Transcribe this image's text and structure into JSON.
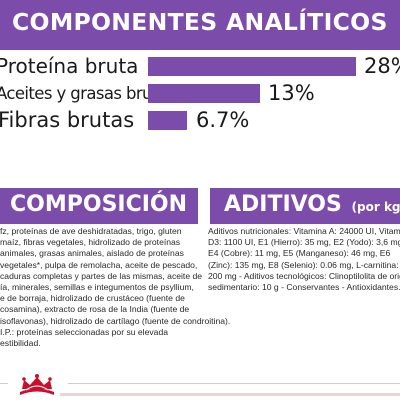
{
  "analysis": {
    "title": "COMPONENTES ANALÍTICOS",
    "rows": [
      {
        "label": "Proteína bruta",
        "value": "28%",
        "percent": 28
      },
      {
        "label": "Aceites y grasas brutos",
        "value": "13%",
        "percent": 13
      },
      {
        "label": "Fibras brutas",
        "value": "6.7%",
        "percent": 6.7
      }
    ]
  },
  "composition": {
    "title": "COMPOSICIÓN",
    "lines": [
      "fz, proteínas de ave deshidratadas, trigo, gluten",
      "maíz, fibras vegetales, hidrolizado de proteínas",
      "animales, grasas animales, aislado de proteínas",
      "vegetales*, pulpa de remolacha, aceite de pescado,",
      "caduras completas y partes de las mismas, aceite de",
      "ía, minerales, semillas e integumentos de psyllium,",
      "e de borraja, hidrolizado de crustáceo (fuente de",
      "cosamina), extracto de rosa de la India (fuente de",
      "isoflavonas), hidrolizado de cartílago (fuente de condroitina).",
      "I.P.: proteínas seleccionadas por su elevada",
      "estibilidad."
    ]
  },
  "additives": {
    "title": "ADITIVOS",
    "unit": "(por kg)",
    "lines": [
      "Aditivos nutricionales: Vitamina A: 24000 UI, Vitamina",
      "D3: 1100 UI, E1 (Hierro): 35 mg, E2 (Yodo): 3,6 mg,",
      "E4 (Cobre): 11 mg, E5 (Manganeso): 46 mg, E6",
      "(Zinc): 135 mg, E8 (Selenio): 0.06 mg, L-carnitina:",
      "200 mg - Aditivos tecnológicos: Clinoptilolita de origen",
      "sedimentario: 10 g - Conservantes - Antioxidantes."
    ]
  },
  "footer": {
    "logo_icon": "royal-canin-crown-logo-icon",
    "accent_color": "#c8102e"
  },
  "colors": {
    "brand_purple": "#7c4cab"
  }
}
